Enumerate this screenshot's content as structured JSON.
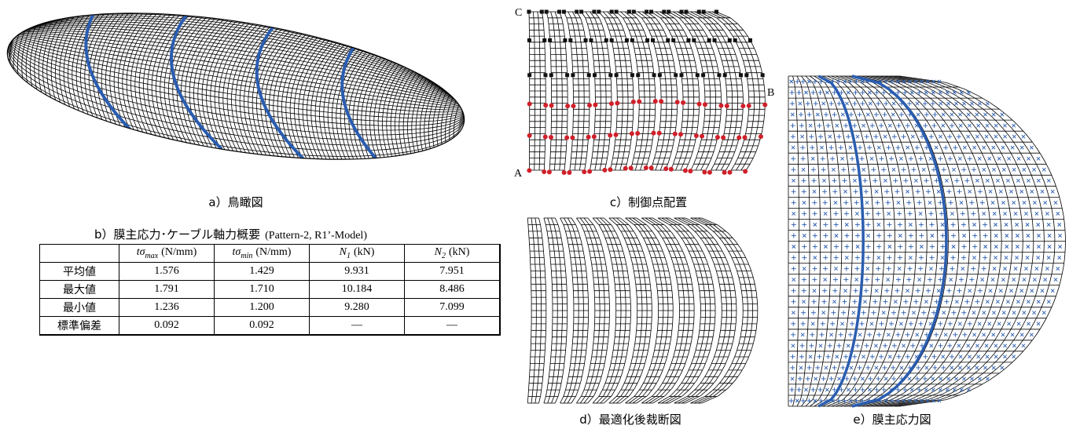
{
  "panel_a": {
    "caption": "a）鳥瞰図"
  },
  "panel_b": {
    "caption": "b）膜主応力･ケーブル軸力概要",
    "caption_note": "(Pattern-2, R1’-Model)",
    "table": {
      "header": [
        {
          "symbol": "tσ",
          "subscript": "max",
          "unit": "(N/mm)"
        },
        {
          "symbol": "tσ",
          "subscript": "min",
          "unit": "(N/mm)"
        },
        {
          "symbol": "N",
          "subscript": "1",
          "unit": "(kN)"
        },
        {
          "symbol": "N",
          "subscript": "2",
          "unit": "(kN)"
        }
      ],
      "rows": [
        [
          "平均値",
          "1.576",
          "1.429",
          "9.931",
          "7.951"
        ],
        [
          "最大値",
          "1.791",
          "1.710",
          "10.184",
          "8.486"
        ],
        [
          "最小値",
          "1.236",
          "1.200",
          "9.280",
          "7.099"
        ],
        [
          "標準偏差",
          "0.092",
          "0.092",
          "—",
          "—"
        ]
      ]
    }
  },
  "panel_c": {
    "caption": "c）制御点配置",
    "labels": [
      "A",
      "B",
      "C"
    ]
  },
  "panel_d": {
    "caption": "d）最適化後裁断図"
  },
  "panel_e": {
    "caption": "e）膜主応力図"
  }
}
